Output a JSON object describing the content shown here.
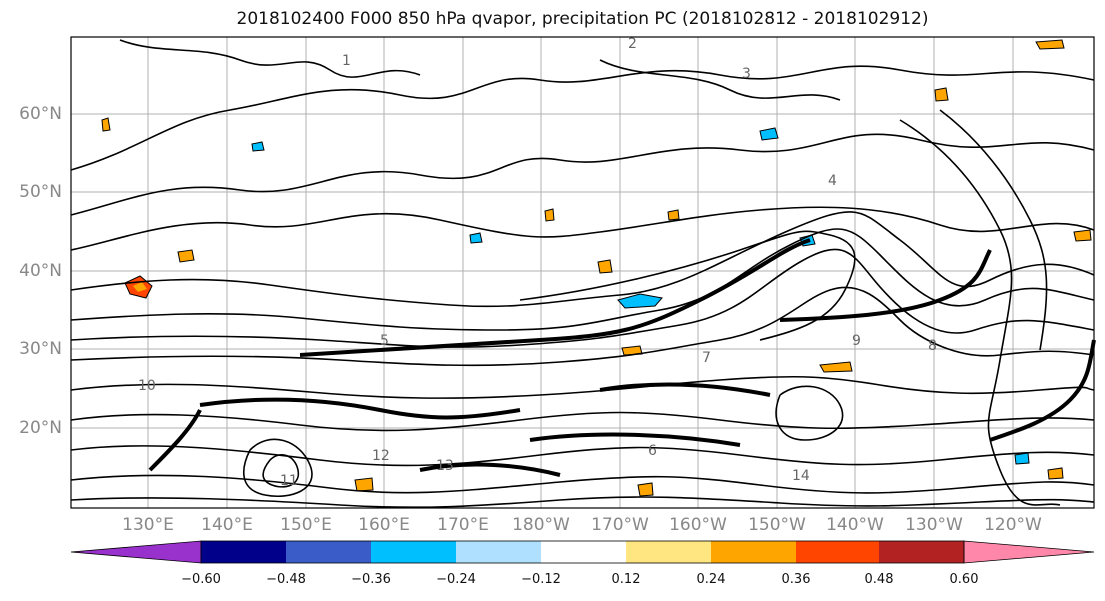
{
  "title": "2018102400 F000 850 hPa qvapor, precipitation PC (2018102812 - 2018102912)",
  "lat_labels": [
    "60°N",
    "50°N",
    "40°N",
    "30°N",
    "20°N"
  ],
  "lon_labels": [
    "130°E",
    "140°E",
    "150°E",
    "160°E",
    "170°E",
    "180°W",
    "170°W",
    "160°W",
    "150°W",
    "140°W",
    "130°W",
    "120°W"
  ],
  "colorbar": {
    "tick_labels": [
      "−0.60",
      "−0.48",
      "−0.36",
      "−0.24",
      "−0.12",
      "0.12",
      "0.24",
      "0.36",
      "0.48",
      "0.60"
    ],
    "colors": [
      "#9932cc",
      "#00008b",
      "#3a5cc8",
      "#00bfff",
      "#b0e0ff",
      "#ffffff",
      "#ffe680",
      "#ffa500",
      "#ff4500",
      "#b22222",
      "#ff88aa"
    ]
  },
  "contour_labels": [
    "1",
    "2",
    "3",
    "4",
    "5",
    "6",
    "7",
    "8",
    "9",
    "10",
    "11",
    "12",
    "13",
    "14"
  ],
  "colors": {
    "contour": "#000000",
    "grid": "#b0b0b0",
    "axis_text": "#888888"
  }
}
